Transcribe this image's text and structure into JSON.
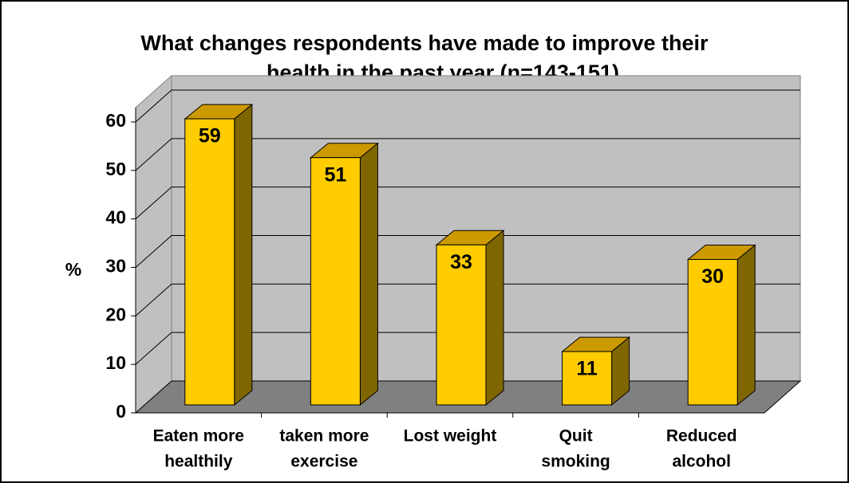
{
  "chart_data": {
    "type": "bar3d",
    "title": [
      "What changes respondents have made to improve their",
      "health in the past year (n=143-151)"
    ],
    "ylabel": "%",
    "categories": [
      [
        "Eaten more",
        "healthily"
      ],
      [
        "taken more",
        "exercise"
      ],
      [
        "Lost weight"
      ],
      [
        "Quit",
        "smoking"
      ],
      [
        "Reduced",
        "alcohol"
      ]
    ],
    "values": [
      59,
      51,
      33,
      11,
      30
    ],
    "color": "#FFCC00",
    "ylim": [
      0,
      60
    ],
    "yticks": [
      0,
      10,
      20,
      30,
      40,
      50,
      60
    ],
    "grid": true
  }
}
